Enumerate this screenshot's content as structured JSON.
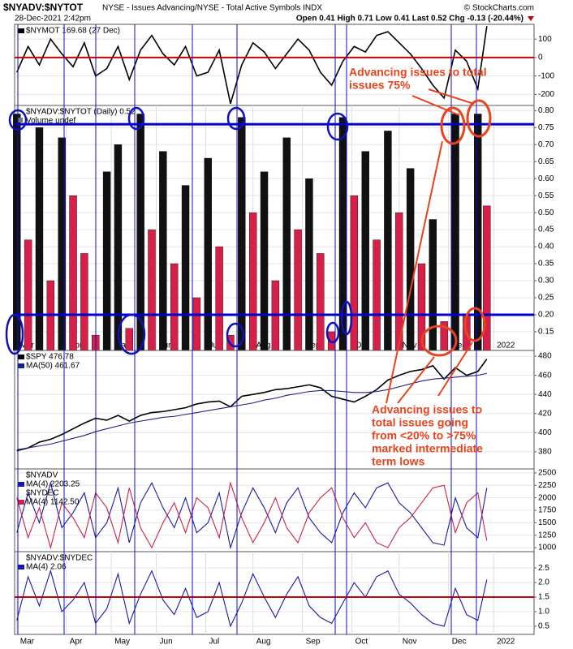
{
  "header": {
    "title": "$NYADV:$NYTOT",
    "subtitle": "NYSE - Issues Advancing/NYSE - Total Active Symbols INDX",
    "date": "28-Dec-2021 2:42pm",
    "quote": "Open 0.41 High 0.71 Low 0.41 Last 0.52 Chg -0.13 (-20.44%)",
    "source": "© StockCharts.com"
  },
  "annotations": [
    [
      "Advancing issues to total",
      "issues 75%"
    ],
    [
      "Advancing issues to",
      "total issues going",
      "from <20% to >75%",
      "marked intermediate",
      "term lows"
    ]
  ],
  "chart_data": [
    {
      "type": "line",
      "xlim": [
        -1,
        230
      ],
      "ylim": [
        -260,
        180
      ],
      "yticks": [
        -200,
        -100,
        0,
        100
      ],
      "hlines": [
        {
          "value": 0,
          "color": "#cc0000"
        }
      ],
      "x": [
        0,
        5,
        10,
        15,
        20,
        25,
        30,
        35,
        40,
        45,
        50,
        55,
        60,
        65,
        70,
        75,
        80,
        85,
        90,
        95,
        100,
        105,
        110,
        115,
        120,
        125,
        130,
        135,
        140,
        145,
        150,
        155,
        160,
        165,
        170,
        175,
        180,
        185,
        190,
        195,
        200,
        205,
        209
      ],
      "series": [
        {
          "name": "$NYMOT 169.68 (27 Dec)",
          "color": "#000000",
          "values": [
            -80,
            60,
            -40,
            100,
            20,
            -50,
            80,
            -100,
            -60,
            60,
            -120,
            40,
            120,
            20,
            -40,
            60,
            -100,
            -80,
            40,
            -250,
            -40,
            80,
            30,
            -60,
            20,
            100,
            40,
            -80,
            -150,
            -20,
            60,
            30,
            120,
            140,
            80,
            20,
            -60,
            -150,
            -220,
            40,
            -20,
            -170,
            170
          ]
        }
      ]
    },
    {
      "type": "bar",
      "xlim": [
        -1,
        230
      ],
      "ylim": [
        0.095,
        0.815
      ],
      "label": "$NYADV:$NYTOT (Daily) 0.52",
      "volume_label": "Volume undef",
      "yticks": [
        0.15,
        {
          "value": 0.2,
          "label": "0.20"
        },
        0.25,
        {
          "value": 0.3,
          "label": "0.30"
        },
        0.35,
        {
          "value": 0.4,
          "label": "0.40"
        },
        0.45,
        {
          "value": 0.5,
          "label": "0.50"
        },
        0.55,
        {
          "value": 0.6,
          "label": "0.60"
        },
        0.65,
        {
          "value": 0.7,
          "label": "0.70"
        },
        0.75,
        {
          "value": 0.8,
          "label": "0.80"
        }
      ],
      "xticks": [
        {
          "value": 0,
          "label": "Mar"
        },
        {
          "value": 22,
          "label": "Apr"
        },
        {
          "value": 42,
          "label": "May"
        },
        {
          "value": 62,
          "label": "Jun"
        },
        {
          "value": 84,
          "label": "Jul"
        },
        {
          "value": 105,
          "label": "Aug"
        },
        {
          "value": 127,
          "label": "Sep"
        },
        {
          "value": 149,
          "label": "Oct"
        },
        {
          "value": 170,
          "label": "Nov"
        },
        {
          "value": 192,
          "label": "Dec"
        },
        {
          "value": 212,
          "label": "2022"
        }
      ],
      "hlines": [
        {
          "value": 0.76,
          "color": "#0000cc"
        },
        {
          "value": 0.2,
          "color": "#0000cc"
        }
      ],
      "x": [
        0,
        5,
        10,
        15,
        20,
        25,
        30,
        35,
        40,
        45,
        50,
        55,
        60,
        65,
        70,
        75,
        80,
        85,
        90,
        95,
        100,
        105,
        110,
        115,
        120,
        125,
        130,
        135,
        140,
        145,
        150,
        155,
        160,
        165,
        170,
        175,
        180,
        185,
        190,
        195,
        200,
        205,
        209
      ],
      "values": [
        0.79,
        0.42,
        0.75,
        0.3,
        0.72,
        0.55,
        0.38,
        0.14,
        0.62,
        0.7,
        0.16,
        0.79,
        0.45,
        0.68,
        0.35,
        0.58,
        0.25,
        0.66,
        0.4,
        0.14,
        0.78,
        0.5,
        0.62,
        0.3,
        0.72,
        0.45,
        0.6,
        0.38,
        0.15,
        0.78,
        0.55,
        0.68,
        0.42,
        0.74,
        0.5,
        0.63,
        0.35,
        0.48,
        0.18,
        0.79,
        0.2,
        0.79,
        0.52
      ],
      "colors": [
        "#111111",
        "#d6204a",
        "#111111",
        "#d6204a",
        "#111111",
        "#d6204a",
        "#d6204a",
        "#d6204a",
        "#111111",
        "#111111",
        "#d6204a",
        "#111111",
        "#d6204a",
        "#111111",
        "#d6204a",
        "#111111",
        "#d6204a",
        "#111111",
        "#d6204a",
        "#d6204a",
        "#111111",
        "#d6204a",
        "#111111",
        "#d6204a",
        "#111111",
        "#d6204a",
        "#111111",
        "#d6204a",
        "#d6204a",
        "#111111",
        "#d6204a",
        "#111111",
        "#d6204a",
        "#111111",
        "#d6204a",
        "#111111",
        "#d6204a",
        "#111111",
        "#d6204a",
        "#111111",
        "#d6204a",
        "#111111",
        "#d6204a"
      ]
    },
    {
      "type": "line",
      "xlim": [
        -1,
        230
      ],
      "ylim": [
        362,
        486
      ],
      "yticks": [
        380,
        400,
        420,
        440,
        460,
        480
      ],
      "x": [
        0,
        5,
        10,
        15,
        20,
        25,
        30,
        35,
        40,
        45,
        50,
        55,
        60,
        65,
        70,
        75,
        80,
        85,
        90,
        95,
        100,
        105,
        110,
        115,
        120,
        125,
        130,
        135,
        140,
        145,
        150,
        155,
        160,
        165,
        170,
        175,
        180,
        185,
        190,
        195,
        200,
        205,
        209
      ],
      "series": [
        {
          "name": "$SPY 476.78",
          "color": "#000000",
          "values": [
            381,
            384,
            390,
            393,
            398,
            404,
            410,
            415,
            413,
            418,
            412,
            418,
            421,
            422,
            424,
            426,
            430,
            432,
            433,
            427,
            438,
            440,
            442,
            445,
            446,
            448,
            450,
            447,
            438,
            435,
            432,
            438,
            445,
            455,
            460,
            464,
            466,
            470,
            456,
            468,
            460,
            464,
            477
          ]
        },
        {
          "name": "MA(50) 461.67",
          "color": "#1a237e",
          "values": [
            382,
            384,
            386,
            388,
            391,
            394,
            397,
            401,
            404,
            407,
            410,
            412,
            414,
            416,
            417,
            419,
            421,
            423,
            425,
            427,
            429,
            431,
            434,
            436,
            439,
            441,
            443,
            444,
            444,
            443,
            442,
            442,
            443,
            445,
            448,
            451,
            454,
            456,
            457,
            458,
            459,
            460,
            462
          ]
        }
      ]
    },
    {
      "type": "line",
      "xlim": [
        -1,
        230
      ],
      "ylim": [
        920,
        2580
      ],
      "yticks": [
        1000,
        1250,
        1500,
        1750,
        2000,
        2250,
        2500
      ],
      "x": [
        0,
        5,
        10,
        15,
        20,
        25,
        30,
        35,
        40,
        45,
        50,
        55,
        60,
        65,
        70,
        75,
        80,
        85,
        90,
        95,
        100,
        105,
        110,
        115,
        120,
        125,
        130,
        135,
        140,
        145,
        150,
        155,
        160,
        165,
        170,
        175,
        180,
        185,
        190,
        195,
        200,
        205,
        209
      ],
      "series": [
        {
          "heading": "$NYADV",
          "name": "MA(4) 2203.25",
          "color": "#1a1aa0",
          "values": [
            1300,
            2100,
            1500,
            2300,
            1400,
            1700,
            2100,
            1200,
            1500,
            2200,
            1100,
            1900,
            2300,
            1800,
            1400,
            2000,
            1300,
            1500,
            2100,
            1000,
            1700,
            2200,
            1800,
            1300,
            1900,
            2200,
            1600,
            1300,
            1100,
            1700,
            2100,
            1800,
            2200,
            2300,
            1900,
            1700,
            1400,
            1100,
            1050,
            2000,
            1400,
            1200,
            2200
          ]
        },
        {
          "heading": "$NYDEC",
          "name": "MA(4) 1142.50",
          "color": "#cc2244",
          "values": [
            2000,
            1200,
            1800,
            1000,
            1900,
            1600,
            1200,
            2100,
            1800,
            1100,
            2200,
            1400,
            1000,
            1500,
            1900,
            1300,
            2000,
            1800,
            1200,
            2300,
            1600,
            1100,
            1500,
            2000,
            1400,
            1100,
            1700,
            2000,
            2200,
            1600,
            1200,
            1500,
            1100,
            1000,
            1400,
            1600,
            1900,
            2200,
            2250,
            1300,
            1900,
            2100,
            1140
          ]
        }
      ]
    },
    {
      "type": "line",
      "xlim": [
        -1,
        230
      ],
      "ylim": [
        0.22,
        3.06
      ],
      "heading": "$NYADV:$NYDEC",
      "yticks": [
        0.5,
        {
          "value": 1,
          "label": "1.0"
        },
        1.5,
        {
          "value": 2,
          "label": "2.0"
        },
        2.5
      ],
      "xticks": [
        {
          "value": 0,
          "label": "Mar"
        },
        {
          "value": 22,
          "label": "Apr"
        },
        {
          "value": 42,
          "label": "May"
        },
        {
          "value": 62,
          "label": "Jun"
        },
        {
          "value": 84,
          "label": "Jul"
        },
        {
          "value": 105,
          "label": "Aug"
        },
        {
          "value": 127,
          "label": "Sep"
        },
        {
          "value": 149,
          "label": "Oct"
        },
        {
          "value": 170,
          "label": "Nov"
        },
        {
          "value": 192,
          "label": "Dec"
        },
        {
          "value": 212,
          "label": "2022"
        }
      ],
      "hlines": [
        {
          "value": 1.5,
          "color": "#cc0000"
        }
      ],
      "x": [
        0,
        5,
        10,
        15,
        20,
        25,
        30,
        35,
        40,
        45,
        50,
        55,
        60,
        65,
        70,
        75,
        80,
        85,
        90,
        95,
        100,
        105,
        110,
        115,
        120,
        125,
        130,
        135,
        140,
        145,
        150,
        155,
        160,
        165,
        170,
        175,
        180,
        185,
        190,
        195,
        200,
        205,
        209
      ],
      "series": [
        {
          "name": "MA(4) 2.06",
          "color": "#1a1aa0",
          "values": [
            0.7,
            2.2,
            1.2,
            2.4,
            1,
            1.4,
            2,
            0.6,
            1.1,
            2.3,
            0.6,
            1.6,
            2.4,
            1.4,
            0.9,
            1.8,
            0.8,
            1,
            2,
            0.5,
            1.3,
            2.3,
            1.5,
            0.8,
            1.6,
            2.2,
            1.2,
            0.8,
            0.6,
            1.3,
            2,
            1.5,
            2.2,
            2.4,
            1.6,
            1.3,
            0.9,
            0.6,
            0.5,
            1.8,
            0.9,
            0.7,
            2.1
          ]
        }
      ]
    }
  ]
}
